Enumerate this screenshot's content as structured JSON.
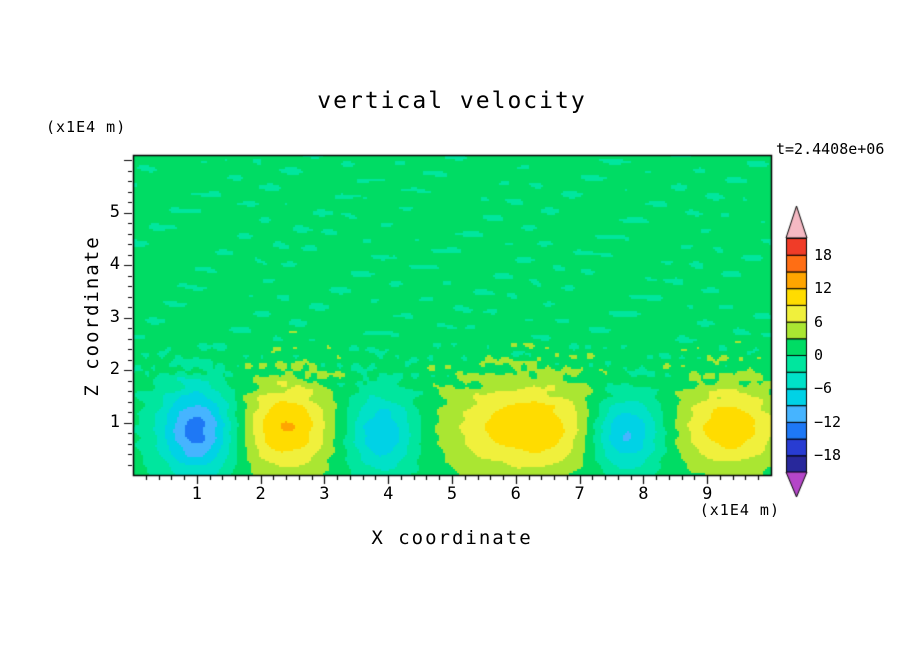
{
  "chart_data": {
    "type": "heatmap",
    "title": "vertical velocity",
    "xlabel": "X coordinate",
    "ylabel": "Z coordinate",
    "x_unit": "(x1E4 m)",
    "y_unit": "(x1E4 m)",
    "timestamp": "t=2.4408e+06",
    "xlim": [
      0,
      10
    ],
    "ylim": [
      0,
      6.1
    ],
    "x_ticks": [
      1,
      2,
      3,
      4,
      5,
      6,
      7,
      8,
      9
    ],
    "y_ticks": [
      1,
      2,
      3,
      4,
      5
    ],
    "minor_tick_step": 0.2,
    "colorbar": {
      "levels": [
        -21,
        -18,
        -15,
        -12,
        -9,
        -6,
        -3,
        0,
        3,
        6,
        9,
        12,
        15,
        18,
        21
      ],
      "labels": [
        18,
        12,
        6,
        0,
        -6,
        -12,
        -18
      ],
      "colors": [
        "#28289B",
        "#283CD2",
        "#1E78F5",
        "#46B4FF",
        "#00D2E6",
        "#00E1C8",
        "#00E69E",
        "#00DC64",
        "#AAE632",
        "#F0F03C",
        "#FFDC00",
        "#FFA500",
        "#FF6E14",
        "#F03C28"
      ],
      "over_color": "#F5B9C3",
      "under_color": "#B446C8"
    },
    "cells": [
      {
        "x": 1.0,
        "z": 0.85,
        "amplitude": -14.5,
        "sx": 0.42,
        "sz": 0.6
      },
      {
        "x": 2.4,
        "z": 0.9,
        "amplitude": 11.0,
        "sx": 0.5,
        "sz": 0.6
      },
      {
        "x": 3.9,
        "z": 0.8,
        "amplitude": -10.0,
        "sx": 0.38,
        "sz": 0.55
      },
      {
        "x": 6.2,
        "z": 0.9,
        "amplitude": 10.5,
        "sx": 0.85,
        "sz": 0.6
      },
      {
        "x": 7.7,
        "z": 0.8,
        "amplitude": -12.5,
        "sx": 0.4,
        "sz": 0.5
      },
      {
        "x": 9.35,
        "z": 0.9,
        "amplitude": 10.0,
        "sx": 0.55,
        "sz": 0.55
      }
    ],
    "noise": {
      "mean": 1.2,
      "amplitude": 1.6
    }
  }
}
